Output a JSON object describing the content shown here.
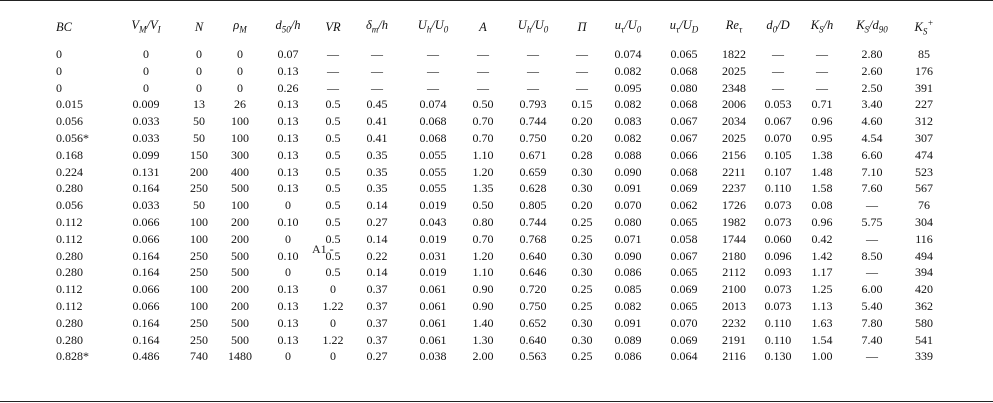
{
  "table": {
    "columns": [
      {
        "main": "BC"
      },
      {
        "main": "V",
        "sub": "M",
        "suffix": "/V",
        "sub2": "I"
      },
      {
        "main": "N"
      },
      {
        "main": "ρ",
        "sub": "M"
      },
      {
        "main": "d",
        "sub": "50",
        "suffix": "/h"
      },
      {
        "main": "VR"
      },
      {
        "main": "δ",
        "sub": "m",
        "suffix": "/h"
      },
      {
        "main": "U",
        "sub": "h",
        "suffix": "/U",
        "sub2": "0"
      },
      {
        "main": "A"
      },
      {
        "main": "U",
        "sub": "h",
        "suffix": "/U",
        "sub2": "0"
      },
      {
        "main": "Π"
      },
      {
        "main": "u",
        "sub": "τ",
        "suffix": "/U",
        "sub2": "0"
      },
      {
        "main": "u",
        "sub": "τ",
        "suffix": "/U",
        "sub2": "D"
      },
      {
        "main": "Re",
        "sub": "τ"
      },
      {
        "main": "d",
        "sub": "0",
        "suffix": "/D"
      },
      {
        "main": "K",
        "sub": "S",
        "suffix": "/h"
      },
      {
        "main": "K",
        "sub": "S",
        "suffix": "/d",
        "sub2": "90"
      },
      {
        "main": "K",
        "sub": "S",
        "sup": "+"
      }
    ],
    "rows": [
      [
        "0",
        "0",
        "0",
        "0",
        "0.07",
        "—",
        "—",
        "—",
        "—",
        "—",
        "—",
        "0.074",
        "0.065",
        "1822",
        "—",
        "—",
        "2.80",
        "85"
      ],
      [
        "0",
        "0",
        "0",
        "0",
        "0.13",
        "—",
        "—",
        "—",
        "—",
        "—",
        "—",
        "0.082",
        "0.068",
        "2025",
        "—",
        "—",
        "2.60",
        "176"
      ],
      [
        "0",
        "0",
        "0",
        "0",
        "0.26",
        "—",
        "—",
        "—",
        "—",
        "—",
        "—",
        "0.095",
        "0.080",
        "2348",
        "—",
        "—",
        "2.50",
        "391"
      ],
      [
        "0.015",
        "0.009",
        "13",
        "26",
        "0.13",
        "0.5",
        "0.45",
        "0.074",
        "0.50",
        "0.793",
        "0.15",
        "0.082",
        "0.068",
        "2006",
        "0.053",
        "0.71",
        "3.40",
        "227"
      ],
      [
        "0.056",
        "0.033",
        "50",
        "100",
        "0.13",
        "0.5",
        "0.41",
        "0.068",
        "0.70",
        "0.744",
        "0.20",
        "0.083",
        "0.067",
        "2034",
        "0.067",
        "0.96",
        "4.60",
        "312"
      ],
      [
        "0.056*",
        "0.033",
        "50",
        "100",
        "0.13",
        "0.5",
        "0.41",
        "0.068",
        "0.70",
        "0.750",
        "0.20",
        "0.082",
        "0.067",
        "2025",
        "0.070",
        "0.95",
        "4.54",
        "307"
      ],
      [
        "0.168",
        "0.099",
        "150",
        "300",
        "0.13",
        "0.5",
        "0.35",
        "0.055",
        "1.10",
        "0.671",
        "0.28",
        "0.088",
        "0.066",
        "2156",
        "0.105",
        "1.38",
        "6.60",
        "474"
      ],
      [
        "0.224",
        "0.131",
        "200",
        "400",
        "0.13",
        "0.5",
        "0.35",
        "0.055",
        "1.20",
        "0.659",
        "0.30",
        "0.090",
        "0.068",
        "2211",
        "0.107",
        "1.48",
        "7.10",
        "523"
      ],
      [
        "0.280",
        "0.164",
        "250",
        "500",
        "0.13",
        "0.5",
        "0.35",
        "0.055",
        "1.35",
        "0.628",
        "0.30",
        "0.091",
        "0.069",
        "2237",
        "0.110",
        "1.58",
        "7.60",
        "567"
      ],
      [
        "0.056",
        "0.033",
        "50",
        "100",
        "0",
        "0.5",
        "0.14",
        "0.019",
        "0.50",
        "0.805",
        "0.20",
        "0.070",
        "0.062",
        "1726",
        "0.073",
        "0.08",
        "—",
        "76"
      ],
      [
        "0.112",
        "0.066",
        "100",
        "200",
        "0.10",
        "0.5",
        "0.27",
        "0.043",
        "0.80",
        "0.744",
        "0.25",
        "0.080",
        "0.065",
        "1982",
        "0.073",
        "0.96",
        "5.75",
        "304"
      ],
      [
        "0.112",
        "0.066",
        "100",
        "200",
        "0",
        "0.5",
        "0.14",
        "0.019",
        "0.70",
        "0.768",
        "0.25",
        "0.071",
        "0.058",
        "1744",
        "0.060",
        "0.42",
        "—",
        "116"
      ],
      [
        "0.280",
        "0.164",
        "250",
        "500",
        "0.10",
        "0.5",
        "0.22",
        "0.031",
        "1.20",
        "0.640",
        "0.30",
        "0.090",
        "0.067",
        "2180",
        "0.096",
        "1.42",
        "8.50",
        "494"
      ],
      [
        "0.280",
        "0.164",
        "250",
        "500",
        "0",
        "0.5",
        "0.14",
        "0.019",
        "1.10",
        "0.646",
        "0.30",
        "0.086",
        "0.065",
        "2112",
        "0.093",
        "1.17",
        "—",
        "394"
      ],
      [
        "0.112",
        "0.066",
        "100",
        "200",
        "0.13",
        "0",
        "0.37",
        "0.061",
        "0.90",
        "0.720",
        "0.25",
        "0.085",
        "0.069",
        "2100",
        "0.073",
        "1.25",
        "6.00",
        "420"
      ],
      [
        "0.112",
        "0.066",
        "100",
        "200",
        "0.13",
        "1.22",
        "0.37",
        "0.061",
        "0.90",
        "0.750",
        "0.25",
        "0.082",
        "0.065",
        "2013",
        "0.073",
        "1.13",
        "5.40",
        "362"
      ],
      [
        "0.280",
        "0.164",
        "250",
        "500",
        "0.13",
        "0",
        "0.37",
        "0.061",
        "1.40",
        "0.652",
        "0.30",
        "0.091",
        "0.070",
        "2232",
        "0.110",
        "1.63",
        "7.80",
        "580"
      ],
      [
        "0.280",
        "0.164",
        "250",
        "500",
        "0.13",
        "1.22",
        "0.37",
        "0.061",
        "1.30",
        "0.640",
        "0.30",
        "0.089",
        "0.069",
        "2191",
        "0.110",
        "1.54",
        "7.40",
        "541"
      ],
      [
        "0.828*",
        "0.486",
        "740",
        "1480",
        "0",
        "0",
        "0.27",
        "0.038",
        "2.00",
        "0.563",
        "0.25",
        "0.086",
        "0.064",
        "2116",
        "0.130",
        "1.00",
        "—",
        "339"
      ]
    ]
  },
  "stray_mark": "A1 -"
}
